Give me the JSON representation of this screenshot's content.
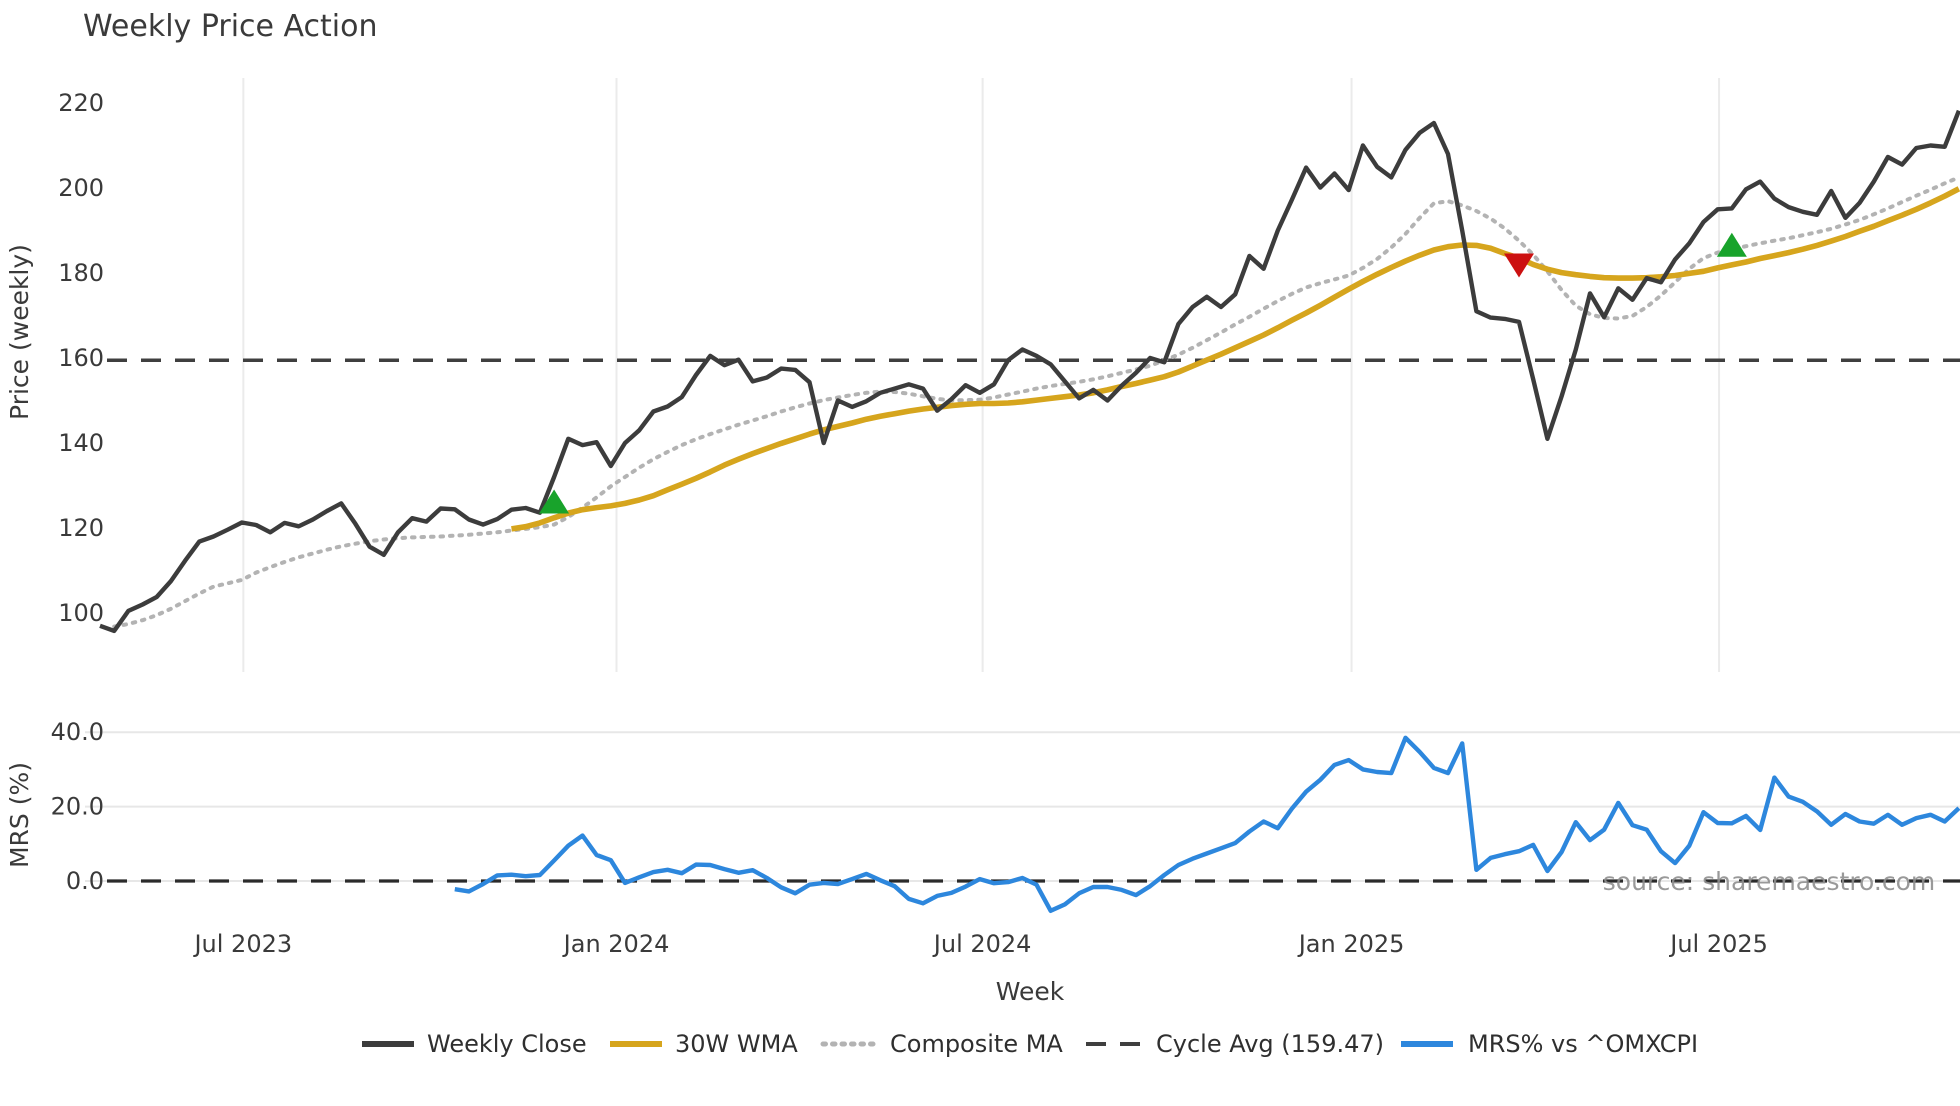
{
  "title": "Weekly Price Action",
  "watermark": "source: sharemaestro.com",
  "colors": {
    "weekly_close": "#3c3c3c",
    "wma_30w": "#d6a51d",
    "composite_ma": "#b3b3b3",
    "cycle_avg": "#3f3f3f",
    "mrs": "#2d87dd",
    "buy_marker": "#18a32b",
    "sell_marker": "#cc1111",
    "gridline": "#ebebeb",
    "text": "#3a3a3a"
  },
  "axes": {
    "xlabel": "Week",
    "price": {
      "ylabel": "Price (weekly)",
      "ticks": [
        220,
        200,
        180,
        160,
        140,
        120,
        100
      ]
    },
    "mrs": {
      "ylabel": "MRS (%)",
      "ticks": [
        "40.0",
        "20.0",
        "0.0"
      ],
      "tick_values": [
        40,
        20,
        0
      ]
    },
    "x_ticks": [
      {
        "week": 10.1,
        "label": "Jul 2023"
      },
      {
        "week": 36.4,
        "label": "Jan 2024"
      },
      {
        "week": 62.2,
        "label": "Jul 2024"
      },
      {
        "week": 88.2,
        "label": "Jan 2025"
      },
      {
        "week": 114.1,
        "label": "Jul 2025"
      }
    ]
  },
  "legend": [
    {
      "label": "Weekly Close",
      "style": "solid",
      "color": "#3c3c3c"
    },
    {
      "label": "30W WMA",
      "style": "solid",
      "color": "#d6a51d"
    },
    {
      "label": "Composite MA",
      "style": "dotted",
      "color": "#b3b3b3"
    },
    {
      "label": "Cycle Avg (159.47)",
      "style": "dashed",
      "color": "#3f3f3f"
    },
    {
      "label": "MRS% vs ^OMXCPI",
      "style": "solid",
      "color": "#2d87dd"
    }
  ],
  "chart_data": {
    "type": "line",
    "title": "Weekly Price Action",
    "x_unit": "weeks (weekly bars, ~Apr 2023 to ~Oct 2025)",
    "panels": [
      {
        "name": "price",
        "ylabel": "Price (weekly)",
        "ylim": [
          83,
          228
        ],
        "grid": "vertical-only"
      },
      {
        "name": "mrs",
        "ylabel": "MRS (%)",
        "ylim": [
          -10,
          45
        ],
        "grid": "horizontal"
      }
    ],
    "cycle_avg_value": 159.47,
    "series": [
      {
        "name": "Weekly Close",
        "panel": "price",
        "start_week": 0,
        "values": [
          97,
          95.8,
          100.5,
          102,
          103.8,
          107.5,
          112.3,
          116.8,
          118,
          119.6,
          121.3,
          120.7,
          119,
          121.2,
          120.4,
          122,
          124,
          125.8,
          121,
          115.6,
          113.7,
          119,
          122.3,
          121.5,
          124.6,
          124.4,
          122,
          120.8,
          122.1,
          124.3,
          124.7,
          123.6,
          132,
          141,
          139.5,
          140.2,
          134.6,
          140,
          143,
          147.4,
          148.6,
          150.8,
          156,
          160.5,
          158.3,
          159.6,
          154.5,
          155.4,
          157.5,
          157.2,
          154.3,
          140,
          150,
          148.5,
          149.8,
          151.8,
          152.8,
          153.8,
          152.8,
          147.6,
          150.3,
          153.6,
          151.8,
          153.8,
          159.5,
          162,
          160.5,
          158.5,
          154.5,
          150.5,
          152.5,
          150,
          153.5,
          156.5,
          160,
          159,
          168,
          172,
          174.4,
          172,
          175,
          184,
          181,
          190,
          197.3,
          204.8,
          200.1,
          203.4,
          199.5,
          210,
          205,
          202.5,
          209,
          213,
          215.3,
          208,
          190,
          171,
          169.5,
          169.2,
          168.5,
          155,
          141,
          151,
          162,
          175.2,
          169.6,
          176.4,
          173.7,
          178.8,
          177.8,
          183.2,
          187,
          192,
          195,
          195.2,
          199.7,
          201.5,
          197.5,
          195.5,
          194.4,
          193.7,
          199.3,
          193,
          196.5,
          201.5,
          207.3,
          205.5,
          209.4,
          210,
          209.7,
          218.2
        ]
      },
      {
        "name": "30W WMA",
        "panel": "price",
        "start_week": 29,
        "values": [
          119.8,
          120.3,
          121.2,
          122.4,
          123.5,
          124.3,
          124.8,
          125.2,
          125.8,
          126.6,
          127.6,
          129,
          130.3,
          131.7,
          133.2,
          134.8,
          136.2,
          137.5,
          138.7,
          139.9,
          141,
          142.1,
          143.1,
          143.9,
          144.7,
          145.6,
          146.3,
          146.9,
          147.5,
          148,
          148.4,
          148.8,
          149.1,
          149.3,
          149.3,
          149.4,
          149.7,
          150.1,
          150.5,
          150.9,
          151.3,
          151.8,
          152.5,
          153.3,
          154,
          154.8,
          155.6,
          156.7,
          158.1,
          159.5,
          160.9,
          162.4,
          163.9,
          165.4,
          167.1,
          168.9,
          170.6,
          172.4,
          174.3,
          176.2,
          178,
          179.7,
          181.3,
          182.8,
          184.2,
          185.4,
          186.2,
          186.6,
          186.5,
          185.8,
          184.6,
          183.5,
          182,
          180.9,
          180.1,
          179.6,
          179.2,
          178.9,
          178.8,
          178.8,
          178.9,
          179.1,
          179.4,
          179.9,
          180.4,
          181.2,
          181.9,
          182.6,
          183.4,
          184.1,
          184.8,
          185.6,
          186.5,
          187.5,
          188.6,
          189.8,
          191,
          192.3,
          193.6,
          195,
          196.5,
          198.1,
          199.8
        ]
      },
      {
        "name": "Composite MA",
        "panel": "price",
        "start_week": 1,
        "values": [
          96.8,
          97.4,
          98.3,
          99.5,
          101,
          102.8,
          104.6,
          106.2,
          107,
          107.8,
          109.5,
          110.8,
          112,
          113.1,
          114,
          114.9,
          115.7,
          116.3,
          116.9,
          117.3,
          117.6,
          117.8,
          117.9,
          118,
          118.2,
          118.4,
          118.7,
          119,
          119.4,
          119.8,
          120.2,
          120.8,
          122.6,
          124.8,
          127.2,
          129.8,
          132,
          134.2,
          136.2,
          137.9,
          139.5,
          140.9,
          142.1,
          143.2,
          144.3,
          145.3,
          146.3,
          147.4,
          148.4,
          149.3,
          150.1,
          150.7,
          151.3,
          151.8,
          152.1,
          152,
          151.6,
          151,
          150.4,
          150,
          150.1,
          150.2,
          150.7,
          151.4,
          152.1,
          152.8,
          153.4,
          153.9,
          154.4,
          155,
          155.7,
          156.5,
          157.3,
          158.2,
          159.4,
          160.8,
          162.4,
          164.2,
          166,
          167.9,
          169.7,
          171.6,
          173.4,
          175.1,
          176.6,
          177.6,
          178.5,
          179.4,
          181.2,
          183.3,
          186,
          189.2,
          193,
          196.4,
          196.9,
          195.9,
          194.6,
          192.8,
          190.5,
          187.6,
          184.3,
          180.4,
          176,
          172.3,
          170.3,
          169.4,
          169.3,
          169.9,
          172,
          174.7,
          177.8,
          181,
          183.5,
          184.8,
          185.6,
          186.3,
          187,
          187.6,
          188.2,
          188.9,
          189.6,
          190.4,
          191.4,
          192.5,
          193.8,
          195.2,
          196.7,
          198.2,
          199.6,
          201.1,
          202.5
        ]
      },
      {
        "name": "MRS% vs ^OMXCPI",
        "panel": "mrs",
        "start_week": 25,
        "values": [
          -2.2,
          -2.8,
          -0.8,
          1.5,
          1.7,
          1.3,
          1.6,
          5.5,
          9.5,
          12.2,
          7,
          5.6,
          -0.5,
          1,
          2.4,
          3,
          2.1,
          4.4,
          4.3,
          3.2,
          2.2,
          2.9,
          0.8,
          -1.7,
          -3.3,
          -1,
          -0.5,
          -0.8,
          0.5,
          1.9,
          0.2,
          -1.4,
          -4.8,
          -6,
          -4,
          -3.2,
          -1.5,
          0.5,
          -0.6,
          -0.3,
          0.8,
          -1,
          -8,
          -6.3,
          -3.3,
          -1.6,
          -1.6,
          -2.4,
          -3.8,
          -1.4,
          1.6,
          4.3,
          6,
          7.4,
          8.8,
          10.2,
          13.3,
          16,
          14.2,
          19.5,
          24,
          27.2,
          31.2,
          32.5,
          30,
          29.3,
          29,
          38.5,
          34.7,
          30.4,
          29,
          37,
          3,
          6.2,
          7.2,
          8,
          9.7,
          2.7,
          7.8,
          15.8,
          11,
          13.8,
          21,
          15,
          13.8,
          8,
          4.8,
          9.5,
          18.5,
          15.6,
          15.5,
          17.5,
          13.7,
          27.8,
          22.7,
          21.3,
          18.7,
          15.1,
          18,
          16,
          15.4,
          17.8,
          15.1,
          16.9,
          17.8,
          16,
          19.6
        ]
      }
    ],
    "markers": {
      "buy": [
        {
          "week": 32,
          "price": 126
        },
        {
          "week": 115,
          "price": 186.4
        }
      ],
      "sell": [
        {
          "week": 100,
          "price": 182
        }
      ]
    },
    "legend_position": "bottom",
    "grid": "light vertical date gridlines on price panel; light horizontal gridlines on MRS panel"
  }
}
